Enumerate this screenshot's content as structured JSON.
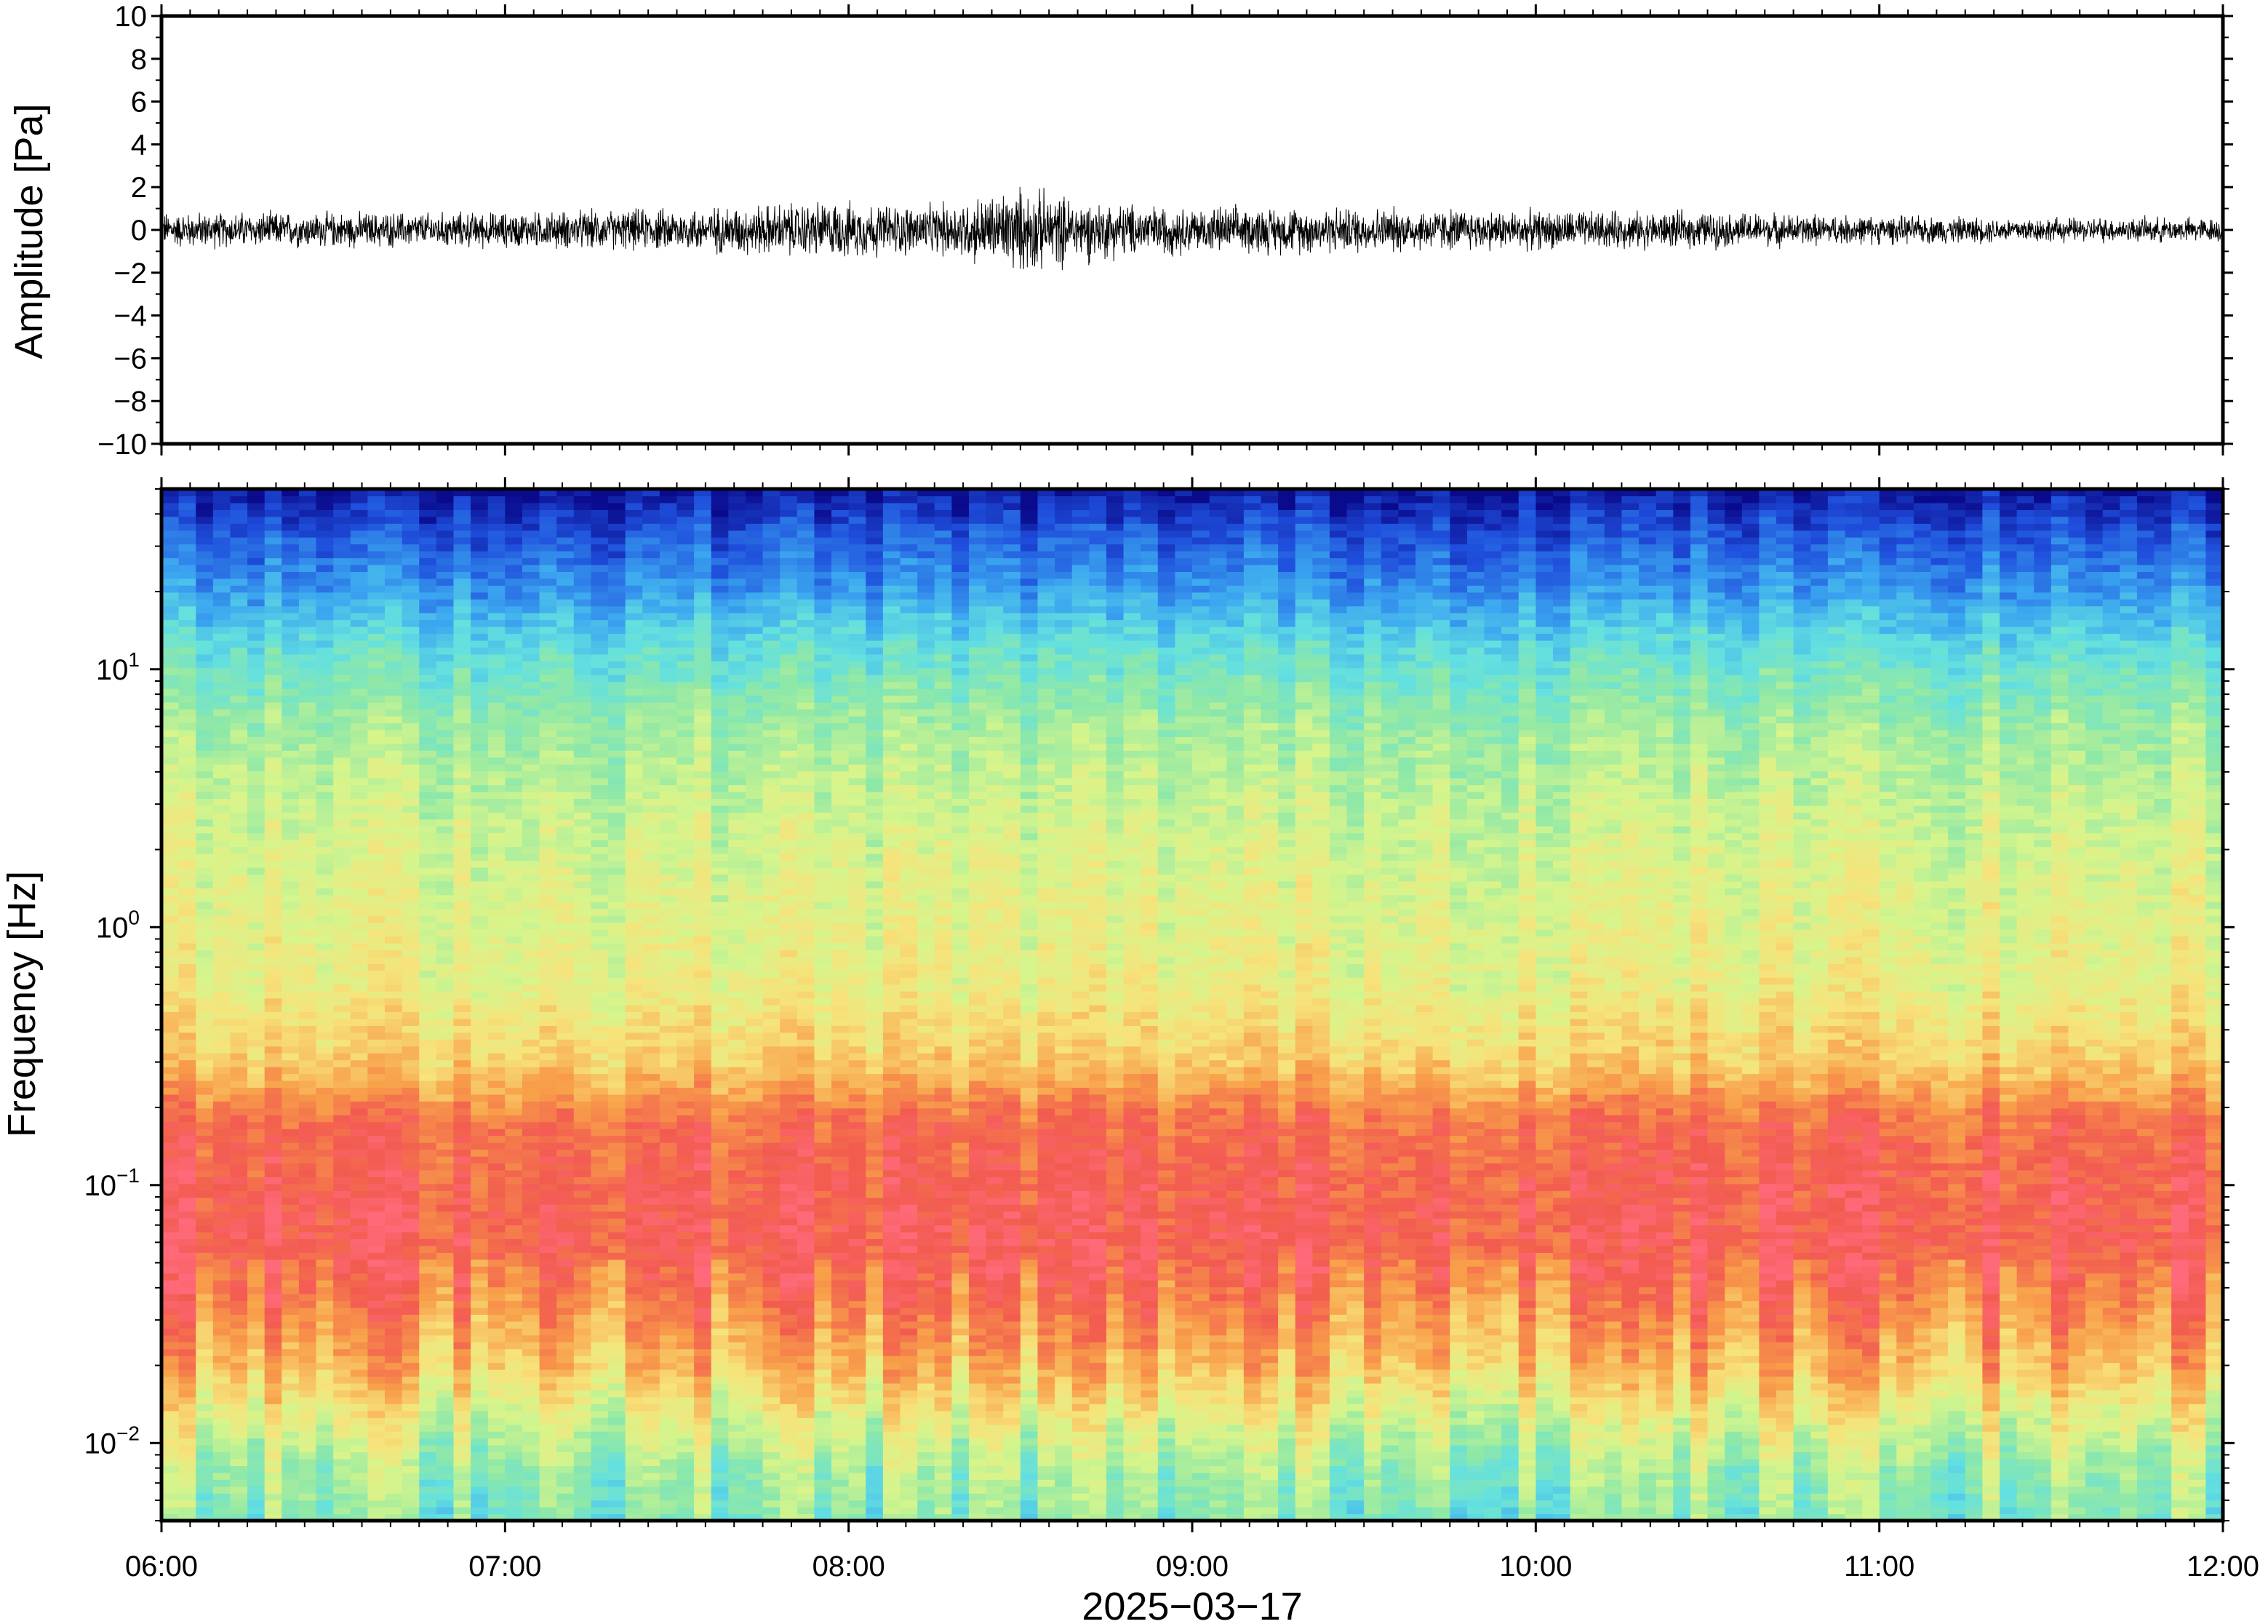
{
  "chart_data": [
    {
      "type": "line",
      "name": "amplitude-waveform",
      "ylabel": "Amplitude [Pa]",
      "ylim": [
        -10,
        10
      ],
      "yticks": [
        10,
        8,
        6,
        4,
        2,
        0,
        -2,
        -4,
        -6,
        -8,
        -10
      ],
      "ytick_labels": [
        "10",
        "8",
        "6",
        "4",
        "2",
        "0",
        "−2",
        "−4",
        "−6",
        "−8",
        "−10"
      ],
      "xlim": [
        "06:00",
        "12:00"
      ],
      "grid": false,
      "envelope": {
        "time": [
          "06:00",
          "06:30",
          "07:00",
          "07:30",
          "07:55",
          "08:15",
          "08:30",
          "08:45",
          "09:00",
          "09:30",
          "10:00",
          "10:30",
          "11:00",
          "11:30",
          "12:00"
        ],
        "amplitude": [
          1.0,
          1.0,
          1.0,
          1.2,
          1.6,
          1.4,
          2.4,
          1.6,
          1.3,
          1.3,
          1.1,
          1.0,
          0.8,
          0.7,
          0.7
        ]
      }
    },
    {
      "type": "heatmap",
      "name": "spectrogram",
      "xlabel": "2025−03−17",
      "ylabel": "Frequency [Hz]",
      "yscale": "log",
      "ylim": [
        0.005,
        50
      ],
      "yticks": [
        0.01,
        0.1,
        1,
        10
      ],
      "ytick_labels": [
        {
          "base": "10",
          "exp": "−2"
        },
        {
          "base": "10",
          "exp": "−1"
        },
        {
          "base": "10",
          "exp": "0"
        },
        {
          "base": "10",
          "exp": "1"
        }
      ],
      "xlim": [
        "06:00",
        "12:00"
      ],
      "xticks": [
        "06:00",
        "07:00",
        "08:00",
        "09:00",
        "10:00",
        "11:00",
        "12:00"
      ],
      "colormap": [
        [
          0.0,
          "#0a0a8c"
        ],
        [
          0.12,
          "#1f4fdc"
        ],
        [
          0.25,
          "#3ba6f0"
        ],
        [
          0.37,
          "#63e0e0"
        ],
        [
          0.47,
          "#8ee8a8"
        ],
        [
          0.58,
          "#d6f58c"
        ],
        [
          0.68,
          "#f7e27a"
        ],
        [
          0.8,
          "#f8a04a"
        ],
        [
          0.92,
          "#f25b4f"
        ],
        [
          1.0,
          "#ff6a7a"
        ]
      ],
      "frequency_profile": {
        "frequency_hz": [
          0.005,
          0.008,
          0.012,
          0.02,
          0.035,
          0.06,
          0.1,
          0.18,
          0.3,
          0.6,
          1.5,
          3,
          6,
          12,
          20,
          35,
          50
        ],
        "intensity": [
          0.45,
          0.5,
          0.6,
          0.75,
          0.85,
          0.93,
          0.92,
          0.88,
          0.72,
          0.63,
          0.6,
          0.56,
          0.5,
          0.38,
          0.24,
          0.12,
          0.02
        ]
      },
      "grid": false
    }
  ],
  "colors": {
    "frame": "#000000",
    "waveform": "#000000",
    "background": "#ffffff"
  }
}
